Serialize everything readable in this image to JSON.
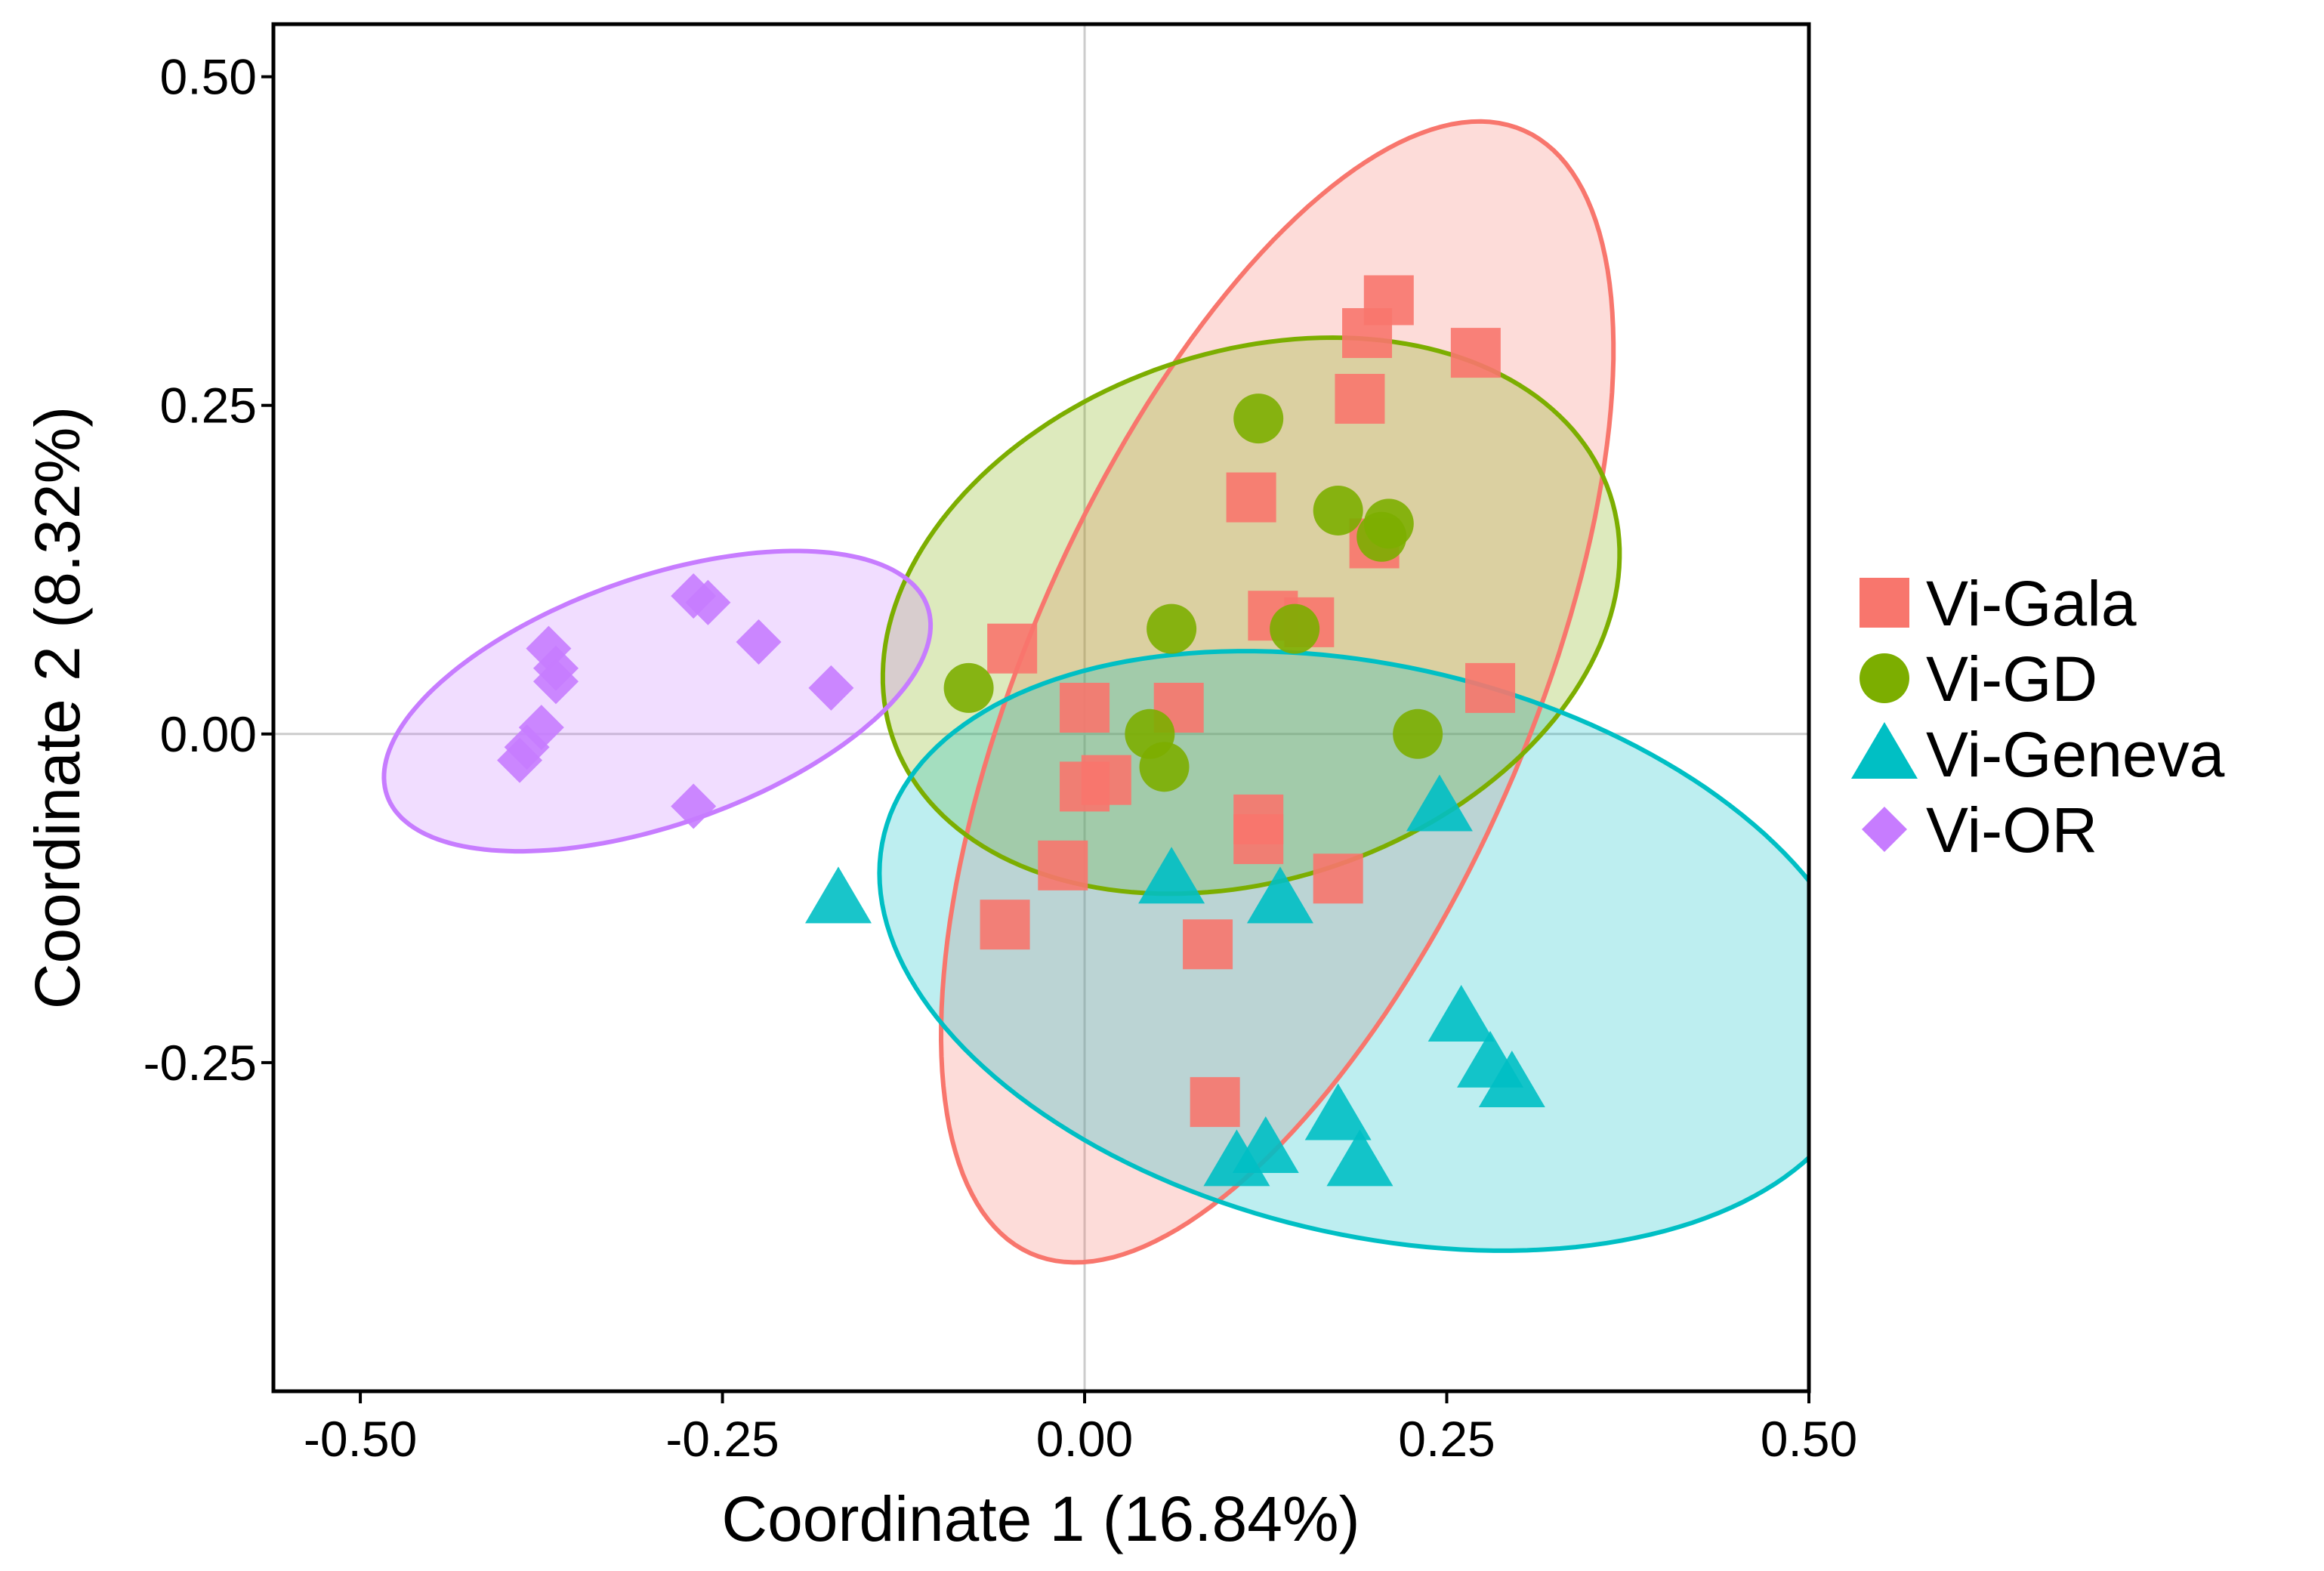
{
  "chart_data": {
    "type": "scatter",
    "title": "",
    "xlabel": "Coordinate 1 (16.84%)",
    "ylabel": "Coordinate 2 (8.32%)",
    "xlim": [
      -0.56,
      0.5
    ],
    "ylim": [
      -0.5,
      0.54
    ],
    "xticks": [
      -0.5,
      -0.25,
      0.0,
      0.25,
      0.5
    ],
    "yticks": [
      -0.25,
      0.0,
      0.25,
      0.5
    ],
    "xtick_labels": [
      "-0.50",
      "-0.25",
      "0.00",
      "0.25",
      "0.50"
    ],
    "ytick_labels": [
      "-0.25",
      "0.00",
      "0.25",
      "0.50"
    ],
    "zero_lines": true,
    "legend_position": "right",
    "series": [
      {
        "name": "Vi-Gala",
        "color": "#F8766D",
        "marker": "square",
        "points": [
          [
            0.21,
            0.33
          ],
          [
            0.195,
            0.305
          ],
          [
            0.27,
            0.29
          ],
          [
            0.19,
            0.255
          ],
          [
            0.115,
            0.18
          ],
          [
            0.2,
            0.145
          ],
          [
            0.13,
            0.09
          ],
          [
            0.155,
            0.085
          ],
          [
            -0.05,
            0.065
          ],
          [
            0.28,
            0.035
          ],
          [
            0.0,
            0.02
          ],
          [
            0.065,
            0.02
          ],
          [
            0.015,
            -0.035
          ],
          [
            0.0,
            -0.04
          ],
          [
            0.12,
            -0.065
          ],
          [
            0.12,
            -0.08
          ],
          [
            -0.015,
            -0.1
          ],
          [
            0.175,
            -0.11
          ],
          [
            -0.055,
            -0.145
          ],
          [
            0.085,
            -0.16
          ],
          [
            0.09,
            -0.28
          ]
        ],
        "ellipse": {
          "cx": 0.133,
          "cy": 0.032,
          "rx": 0.46,
          "ry": 0.175,
          "angle_deg": 69
        }
      },
      {
        "name": "Vi-GD",
        "color": "#7CAE00",
        "marker": "circle",
        "points": [
          [
            0.12,
            0.24
          ],
          [
            0.175,
            0.17
          ],
          [
            0.21,
            0.16
          ],
          [
            0.205,
            0.15
          ],
          [
            0.06,
            0.08
          ],
          [
            0.145,
            0.08
          ],
          [
            -0.08,
            0.035
          ],
          [
            0.045,
            0.0
          ],
          [
            0.23,
            0.0
          ],
          [
            0.055,
            -0.025
          ]
        ],
        "ellipse": {
          "cx": 0.115,
          "cy": 0.09,
          "rx": 0.265,
          "ry": 0.198,
          "angle_deg": 25
        }
      },
      {
        "name": "Vi-Geneva",
        "color": "#00BFC4",
        "marker": "triangle",
        "points": [
          [
            0.245,
            -0.055
          ],
          [
            -0.17,
            -0.125
          ],
          [
            0.06,
            -0.11
          ],
          [
            0.135,
            -0.125
          ],
          [
            0.26,
            -0.215
          ],
          [
            0.28,
            -0.25
          ],
          [
            0.295,
            -0.265
          ],
          [
            0.175,
            -0.29
          ],
          [
            0.19,
            -0.325
          ],
          [
            0.125,
            -0.315
          ],
          [
            0.105,
            -0.325
          ]
        ],
        "ellipse": {
          "cx": 0.2,
          "cy": -0.165,
          "rx": 0.35,
          "ry": 0.215,
          "angle_deg": -16
        }
      },
      {
        "name": "Vi-OR",
        "color": "#C77CFF",
        "marker": "diamond",
        "points": [
          [
            -0.27,
            0.105
          ],
          [
            -0.26,
            0.1
          ],
          [
            -0.225,
            0.07
          ],
          [
            -0.37,
            0.065
          ],
          [
            -0.365,
            0.05
          ],
          [
            -0.365,
            0.04
          ],
          [
            -0.175,
            0.035
          ],
          [
            -0.375,
            0.005
          ],
          [
            -0.385,
            -0.01
          ],
          [
            -0.39,
            -0.02
          ],
          [
            -0.27,
            -0.055
          ]
        ],
        "ellipse": {
          "cx": -0.295,
          "cy": 0.025,
          "rx": 0.2,
          "ry": 0.093,
          "angle_deg": 22
        }
      }
    ]
  }
}
